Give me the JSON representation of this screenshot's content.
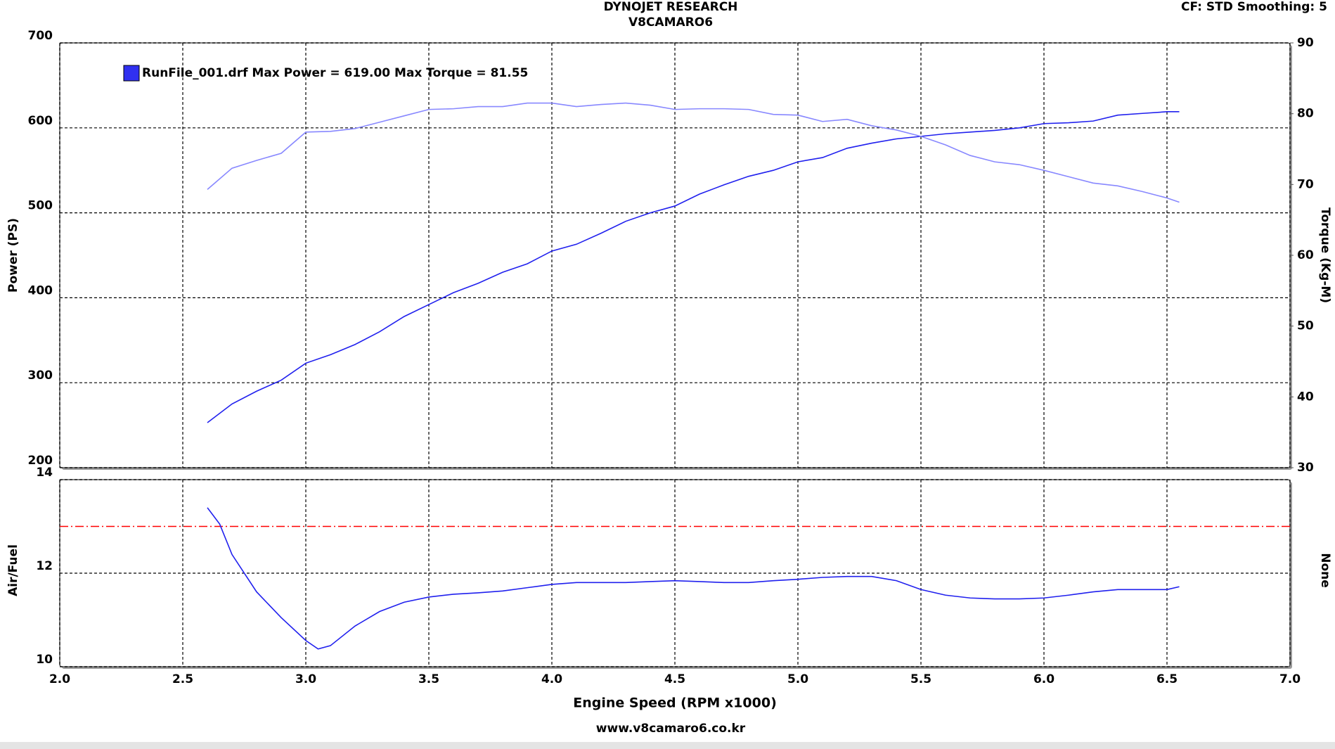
{
  "header": {
    "title": "DYNOJET RESEARCH",
    "subtitle": "V8CAMARO6",
    "settings": "CF: STD  Smoothing: 5"
  },
  "footer": "www.v8camaro6.co.kr",
  "chart_data": [
    {
      "type": "line",
      "legend": {
        "label": "RunFile_001.drf Max Power = 619.00 Max Torque = 81.55",
        "color": "#3030f0",
        "position": "upper left"
      },
      "ylabel": "Power (PS)",
      "y2label": "Torque (Kg-M)",
      "xlim": [
        2,
        7
      ],
      "xticks": [
        2,
        2.5,
        3,
        3.5,
        4,
        4.5,
        5,
        5.5,
        6,
        6.5,
        7
      ],
      "ylim": [
        200,
        700
      ],
      "yticks": [
        200,
        300,
        400,
        500,
        600,
        700
      ],
      "y2lim": [
        30,
        90
      ],
      "y2ticks": [
        30,
        40,
        50,
        60,
        70,
        80,
        90
      ],
      "grid": true,
      "x": [
        2.6,
        2.7,
        2.8,
        2.9,
        3.0,
        3.1,
        3.2,
        3.3,
        3.4,
        3.5,
        3.6,
        3.7,
        3.8,
        3.9,
        4.0,
        4.1,
        4.2,
        4.3,
        4.4,
        4.5,
        4.6,
        4.7,
        4.8,
        4.9,
        5.0,
        5.1,
        5.2,
        5.3,
        5.4,
        5.5,
        5.6,
        5.7,
        5.8,
        5.9,
        6.0,
        6.1,
        6.2,
        6.3,
        6.4,
        6.5,
        6.55
      ],
      "series": [
        {
          "color": "#2020ee",
          "values": [
            253,
            275,
            290,
            303,
            323,
            333,
            345,
            360,
            378,
            392,
            406,
            417,
            430,
            440,
            455,
            463,
            476,
            490,
            500,
            508,
            522,
            533,
            543,
            550,
            560,
            565,
            576,
            582,
            587,
            590,
            593,
            595,
            597,
            600,
            605,
            606,
            608,
            615,
            617,
            619,
            619
          ]
        },
        {
          "color": "#8888ff",
          "axis": "y2",
          "values": [
            69.3,
            72.3,
            73.4,
            74.4,
            77.4,
            77.5,
            77.9,
            78.8,
            79.7,
            80.6,
            80.7,
            81.0,
            81.0,
            81.5,
            81.5,
            81.0,
            81.3,
            81.5,
            81.2,
            80.6,
            80.7,
            80.7,
            80.6,
            79.9,
            79.8,
            78.9,
            79.2,
            78.3,
            77.7,
            76.8,
            75.6,
            74.1,
            73.2,
            72.8,
            72.0,
            71.1,
            70.2,
            69.8,
            69.0,
            68.1,
            67.5
          ]
        }
      ]
    },
    {
      "type": "line",
      "ylabel": "Air/Fuel",
      "y2label": "None",
      "xlabel": "Engine Speed (RPM x1000)",
      "xlim": [
        2,
        7
      ],
      "xticks": [
        {
          "value": 2,
          "label": "2.0"
        },
        2.5,
        {
          "value": 3,
          "label": "3.0"
        },
        3.5,
        {
          "value": 4,
          "label": "4.0"
        },
        4.5,
        {
          "value": 5,
          "label": "5.0"
        },
        5.5,
        {
          "value": 6,
          "label": "6.0"
        },
        6.5,
        {
          "value": 7,
          "label": "7.0"
        }
      ],
      "ylim": [
        10,
        14
      ],
      "yticks": [
        10,
        12,
        14
      ],
      "grid": true,
      "hline": {
        "value": 13,
        "color": "#ff0000"
      },
      "x": [
        2.6,
        2.65,
        2.7,
        2.8,
        2.9,
        3.0,
        3.05,
        3.1,
        3.2,
        3.3,
        3.4,
        3.5,
        3.6,
        3.7,
        3.8,
        3.9,
        4.0,
        4.1,
        4.2,
        4.3,
        4.4,
        4.5,
        4.6,
        4.7,
        4.8,
        4.9,
        5.0,
        5.1,
        5.2,
        5.3,
        5.4,
        5.5,
        5.6,
        5.7,
        5.8,
        5.9,
        6.0,
        6.1,
        6.2,
        6.3,
        6.4,
        6.5,
        6.55
      ],
      "series": [
        {
          "color": "#2020ee",
          "values": [
            13.4,
            13.05,
            12.4,
            11.6,
            11.05,
            10.56,
            10.38,
            10.45,
            10.87,
            11.18,
            11.38,
            11.49,
            11.55,
            11.58,
            11.62,
            11.69,
            11.76,
            11.8,
            11.8,
            11.8,
            11.82,
            11.84,
            11.82,
            11.8,
            11.8,
            11.84,
            11.87,
            11.91,
            11.93,
            11.93,
            11.84,
            11.65,
            11.53,
            11.47,
            11.45,
            11.45,
            11.47,
            11.53,
            11.6,
            11.65,
            11.65,
            11.65,
            11.71
          ]
        }
      ]
    }
  ]
}
